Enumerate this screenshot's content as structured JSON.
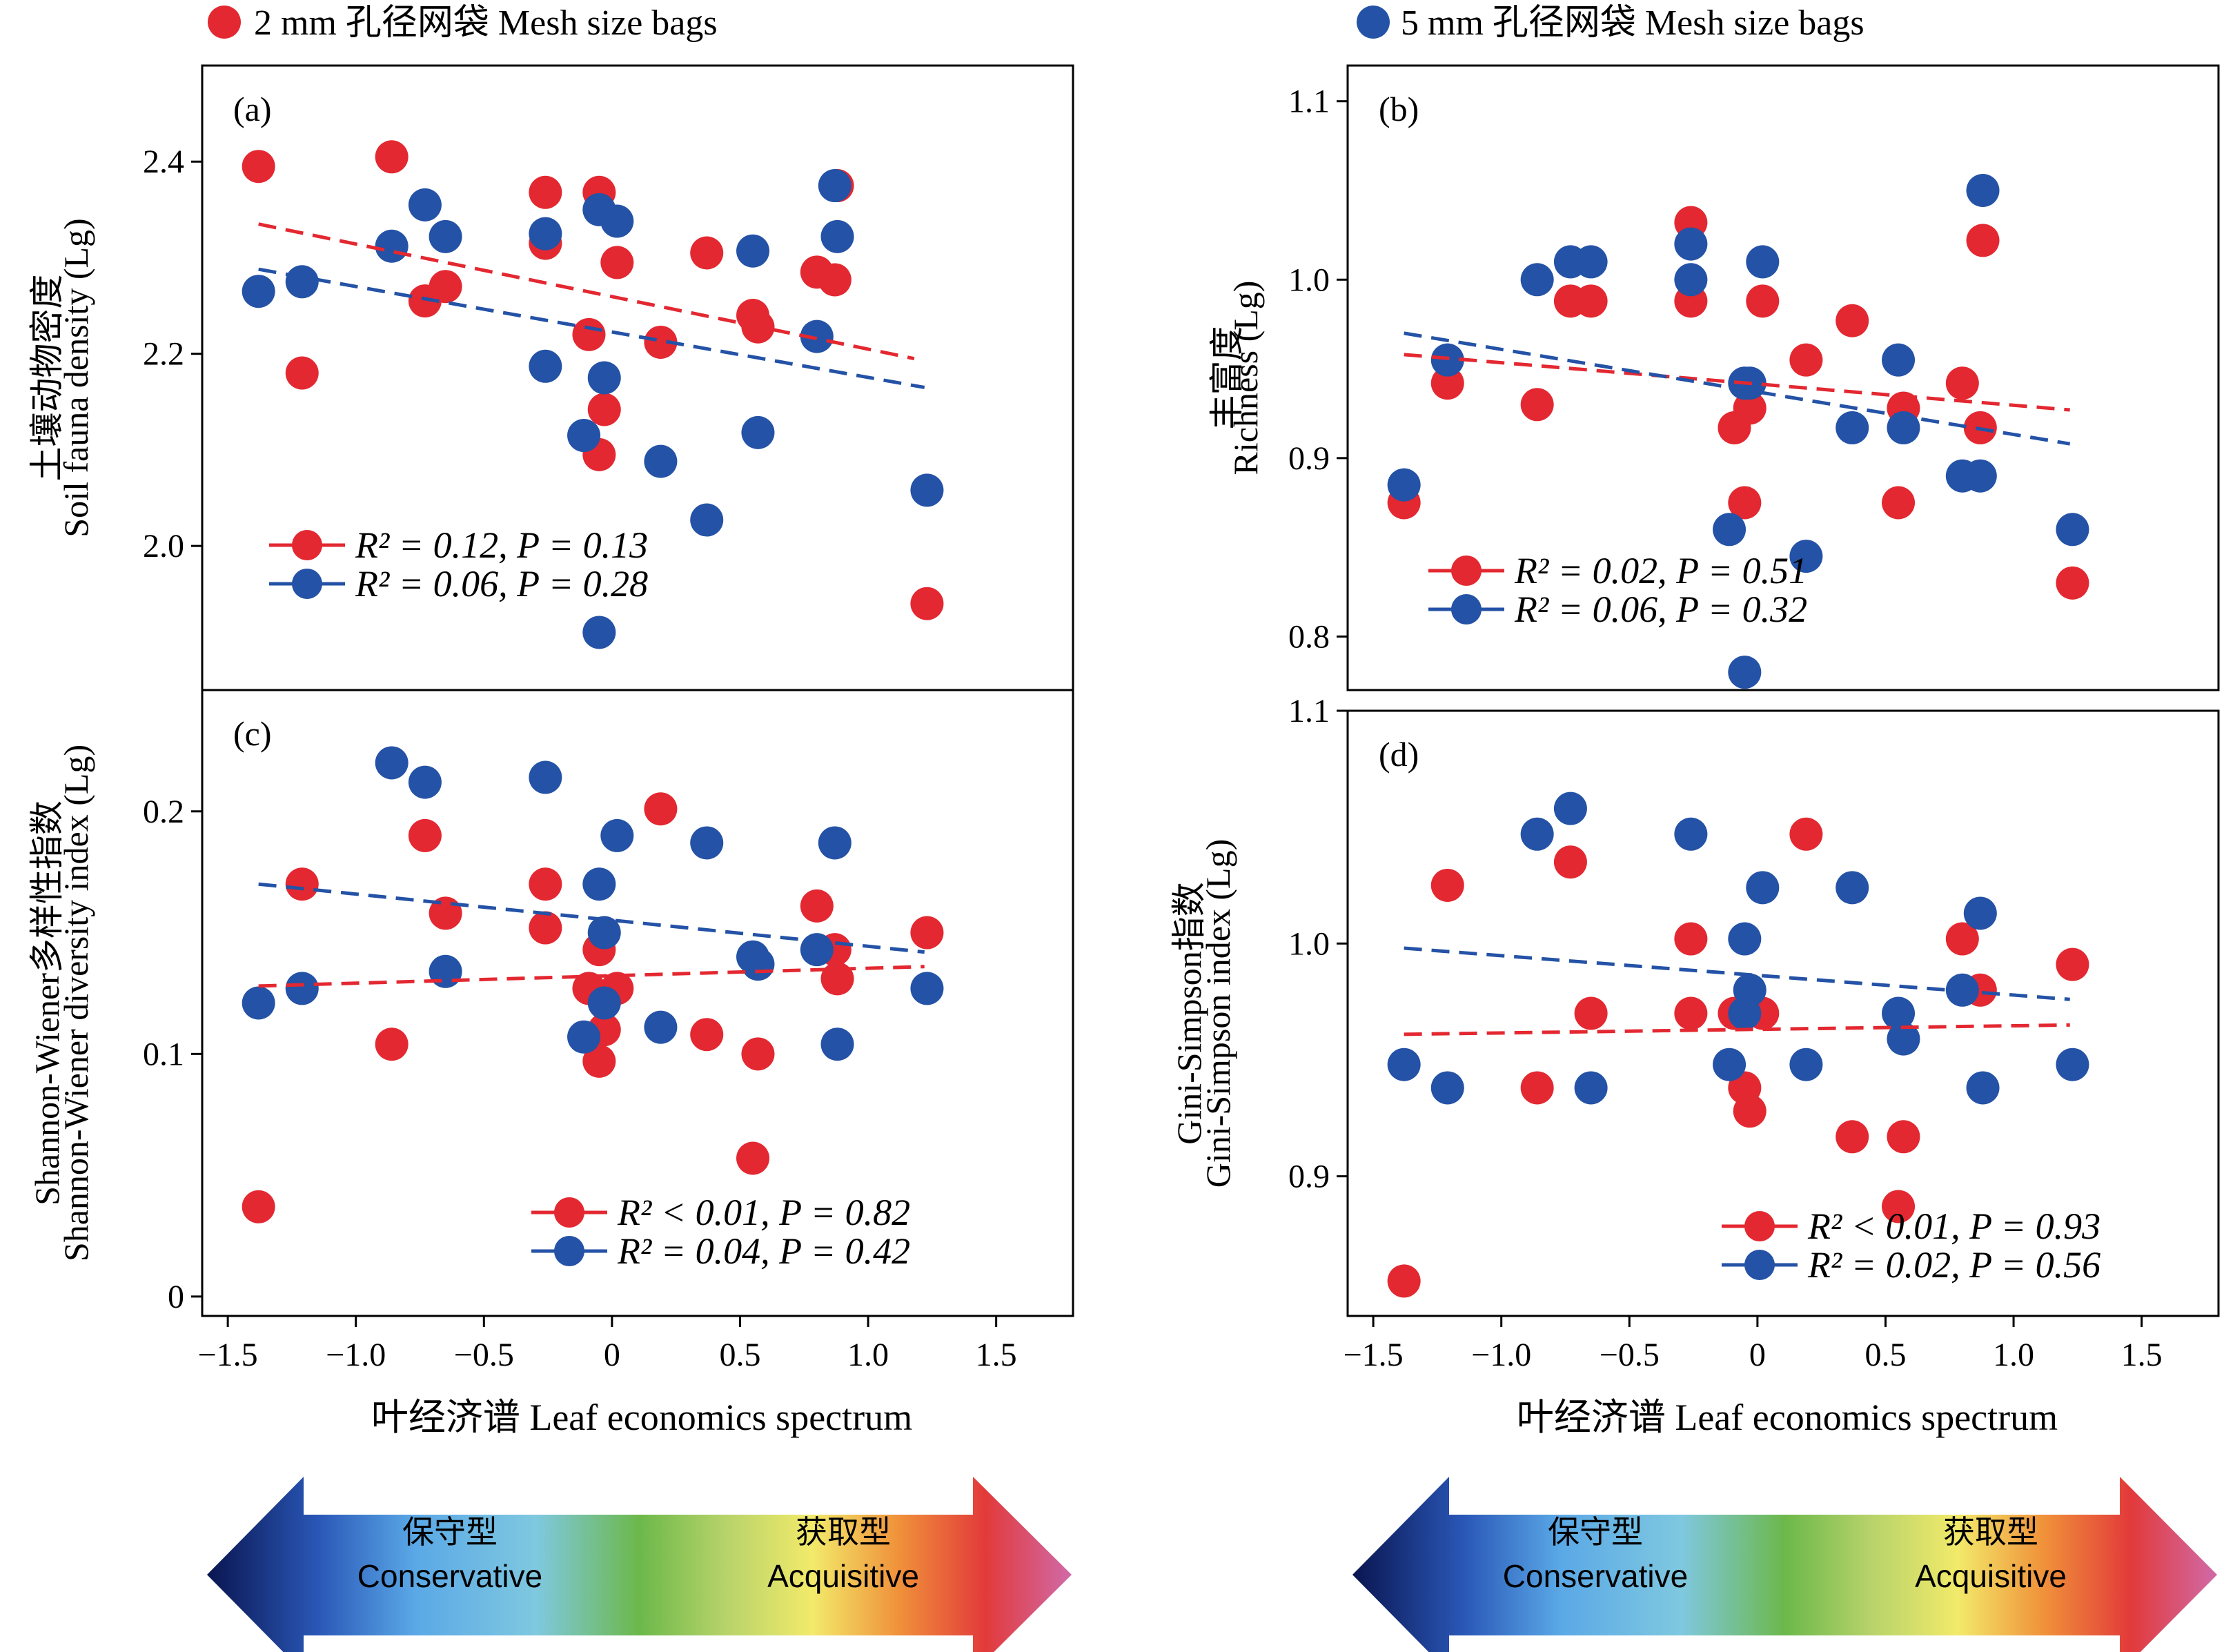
{
  "colors": {
    "red": "#E32831",
    "blue": "#2452A6",
    "axis": "#000000"
  },
  "legend_top": {
    "red_label": "2 mm 孔径网袋 Mesh size bags",
    "blue_label": "5 mm 孔径网袋 Mesh size bags"
  },
  "x_axis": {
    "label": "叶经济谱 Leaf economics spectrum",
    "ticks": [
      "−1.5",
      "−1.0",
      "−0.5",
      "0",
      "0.5",
      "1.0",
      "1.5"
    ]
  },
  "arrow": {
    "left_cn": "保守型",
    "left_en": "Conservative",
    "right_cn": "获取型",
    "right_en": "Acquisitive"
  },
  "chart_data": [
    {
      "id": "a",
      "panel_label": "(a)",
      "type": "scatter",
      "ylabel_cn": "土壤动物密度",
      "ylabel_en": "Soil fauna density (Lg)",
      "xlim": [
        -1.6,
        1.8
      ],
      "ylim": [
        1.85,
        2.5
      ],
      "yticks": [
        2.0,
        2.2,
        2.4
      ],
      "ytick_labels": [
        "2.0",
        "2.2",
        "2.4"
      ],
      "series": [
        {
          "color": "red",
          "legend": "R² = 0.12, P = 0.13",
          "fit": [
            [
              -1.38,
              2.335
            ],
            [
              1.18,
              2.195
            ]
          ],
          "points": [
            [
              -1.38,
              2.395
            ],
            [
              -1.21,
              2.18
            ],
            [
              -0.86,
              2.405
            ],
            [
              -0.73,
              2.255
            ],
            [
              -0.65,
              2.27
            ],
            [
              -0.26,
              2.368
            ],
            [
              -0.26,
              2.315
            ],
            [
              -0.09,
              2.22
            ],
            [
              -0.05,
              2.095
            ],
            [
              -0.05,
              2.368
            ],
            [
              -0.03,
              2.142
            ],
            [
              0.02,
              2.295
            ],
            [
              0.19,
              2.212
            ],
            [
              0.37,
              2.305
            ],
            [
              0.55,
              2.24
            ],
            [
              0.57,
              2.228
            ],
            [
              0.8,
              2.285
            ],
            [
              0.87,
              2.277
            ],
            [
              0.88,
              2.375
            ],
            [
              1.23,
              1.94
            ]
          ]
        },
        {
          "color": "blue",
          "legend": "R² = 0.06, P = 0.28",
          "fit": [
            [
              -1.38,
              2.288
            ],
            [
              1.22,
              2.165
            ]
          ],
          "points": [
            [
              -1.38,
              2.265
            ],
            [
              -1.21,
              2.275
            ],
            [
              -0.86,
              2.312
            ],
            [
              -0.73,
              2.355
            ],
            [
              -0.65,
              2.322
            ],
            [
              -0.26,
              2.325
            ],
            [
              -0.26,
              2.187
            ],
            [
              -0.11,
              2.115
            ],
            [
              -0.05,
              2.35
            ],
            [
              -0.03,
              2.175
            ],
            [
              0.02,
              2.338
            ],
            [
              0.19,
              2.088
            ],
            [
              0.37,
              2.027
            ],
            [
              0.55,
              2.307
            ],
            [
              0.57,
              2.118
            ],
            [
              0.8,
              2.218
            ],
            [
              0.87,
              2.375
            ],
            [
              0.88,
              2.322
            ],
            [
              1.23,
              2.058
            ],
            [
              -0.05,
              1.91
            ]
          ]
        }
      ]
    },
    {
      "id": "b",
      "panel_label": "(b)",
      "type": "scatter",
      "ylabel_cn": "丰富度",
      "ylabel_en": "Richness (Lg)",
      "xlim": [
        -1.6,
        1.8
      ],
      "ylim": [
        0.77,
        1.12
      ],
      "yticks": [
        0.8,
        0.9,
        1.0,
        1.1
      ],
      "ytick_labels": [
        "0.8",
        "0.9",
        "1.0",
        "1.1"
      ],
      "series": [
        {
          "color": "red",
          "legend": "R² = 0.02, P = 0.51",
          "fit": [
            [
              -1.38,
              0.958
            ],
            [
              1.22,
              0.927
            ]
          ],
          "points": [
            [
              -1.38,
              0.875
            ],
            [
              -1.21,
              0.942
            ],
            [
              -0.86,
              0.93
            ],
            [
              -0.73,
              0.988
            ],
            [
              -0.65,
              0.988
            ],
            [
              -0.26,
              1.032
            ],
            [
              -0.26,
              0.988
            ],
            [
              -0.09,
              0.917
            ],
            [
              -0.05,
              0.875
            ],
            [
              -0.03,
              0.928
            ],
            [
              0.02,
              0.988
            ],
            [
              0.19,
              0.955
            ],
            [
              0.37,
              0.977
            ],
            [
              0.55,
              0.875
            ],
            [
              0.57,
              0.928
            ],
            [
              0.8,
              0.942
            ],
            [
              0.87,
              0.917
            ],
            [
              0.88,
              1.022
            ],
            [
              1.23,
              0.83
            ]
          ]
        },
        {
          "color": "blue",
          "legend": "R² = 0.06, P = 0.32",
          "fit": [
            [
              -1.38,
              0.97
            ],
            [
              1.22,
              0.908
            ]
          ],
          "points": [
            [
              -1.38,
              0.885
            ],
            [
              -1.21,
              0.955
            ],
            [
              -0.86,
              1.0
            ],
            [
              -0.73,
              1.01
            ],
            [
              -0.65,
              1.01
            ],
            [
              -0.26,
              1.02
            ],
            [
              -0.26,
              1.0
            ],
            [
              -0.11,
              0.86
            ],
            [
              -0.05,
              0.942
            ],
            [
              -0.03,
              0.942
            ],
            [
              0.02,
              1.01
            ],
            [
              0.19,
              0.845
            ],
            [
              0.37,
              0.917
            ],
            [
              0.55,
              0.955
            ],
            [
              0.57,
              0.917
            ],
            [
              0.8,
              0.89
            ],
            [
              0.87,
              0.89
            ],
            [
              0.88,
              1.05
            ],
            [
              1.23,
              0.86
            ],
            [
              -0.05,
              0.78
            ]
          ]
        }
      ]
    },
    {
      "id": "c",
      "panel_label": "(c)",
      "type": "scatter",
      "ylabel_cn": "Shannon-Wiener多样性指数",
      "ylabel_en": "Shannon-Wiener diversity index (Lg)",
      "xlim": [
        -1.6,
        1.8
      ],
      "ylim": [
        -0.008,
        0.25
      ],
      "yticks": [
        0,
        0.1,
        0.2
      ],
      "ytick_labels": [
        "0",
        "0.1",
        "0.2"
      ],
      "series": [
        {
          "color": "red",
          "legend": "R² < 0.01, P = 0.82",
          "fit": [
            [
              -1.38,
              0.128
            ],
            [
              1.22,
              0.136
            ]
          ],
          "points": [
            [
              -1.38,
              0.037
            ],
            [
              -1.21,
              0.17
            ],
            [
              -0.86,
              0.104
            ],
            [
              -0.73,
              0.19
            ],
            [
              -0.65,
              0.158
            ],
            [
              -0.26,
              0.17
            ],
            [
              -0.26,
              0.152
            ],
            [
              -0.09,
              0.127
            ],
            [
              -0.05,
              0.143
            ],
            [
              -0.05,
              0.097
            ],
            [
              -0.03,
              0.11
            ],
            [
              0.02,
              0.127
            ],
            [
              0.19,
              0.201
            ],
            [
              0.37,
              0.108
            ],
            [
              0.55,
              0.057
            ],
            [
              0.57,
              0.1
            ],
            [
              0.8,
              0.161
            ],
            [
              0.87,
              0.143
            ],
            [
              0.88,
              0.131
            ],
            [
              1.23,
              0.15
            ]
          ]
        },
        {
          "color": "blue",
          "legend": "R² = 0.04, P = 0.42",
          "fit": [
            [
              -1.38,
              0.17
            ],
            [
              1.22,
              0.142
            ]
          ],
          "points": [
            [
              -1.38,
              0.121
            ],
            [
              -1.21,
              0.127
            ],
            [
              -0.86,
              0.22
            ],
            [
              -0.73,
              0.212
            ],
            [
              -0.65,
              0.134
            ],
            [
              -0.26,
              0.214
            ],
            [
              -0.11,
              0.107
            ],
            [
              -0.05,
              0.17
            ],
            [
              -0.03,
              0.15
            ],
            [
              -0.03,
              0.121
            ],
            [
              0.02,
              0.19
            ],
            [
              0.19,
              0.111
            ],
            [
              0.37,
              0.187
            ],
            [
              0.55,
              0.14
            ],
            [
              0.57,
              0.137
            ],
            [
              0.8,
              0.143
            ],
            [
              0.87,
              0.187
            ],
            [
              0.88,
              0.104
            ],
            [
              1.23,
              0.127
            ]
          ]
        }
      ]
    },
    {
      "id": "d",
      "panel_label": "(d)",
      "type": "scatter",
      "ylabel_cn": "Gini-Simpson指数",
      "ylabel_en": "Gini-Simpson index (Lg)",
      "xlim": [
        -1.6,
        1.8
      ],
      "ylim": [
        0.84,
        1.1
      ],
      "yticks": [
        0.9,
        1.0,
        1.1
      ],
      "ytick_labels": [
        "0.9",
        "1.0",
        "1.1"
      ],
      "series": [
        {
          "color": "red",
          "legend": "R² < 0.01, P = 0.93",
          "fit": [
            [
              -1.38,
              0.961
            ],
            [
              1.22,
              0.965
            ]
          ],
          "points": [
            [
              -1.38,
              0.855
            ],
            [
              -1.21,
              1.025
            ],
            [
              -0.86,
              0.938
            ],
            [
              -0.73,
              1.035
            ],
            [
              -0.65,
              0.97
            ],
            [
              -0.26,
              1.002
            ],
            [
              -0.26,
              0.97
            ],
            [
              -0.09,
              0.97
            ],
            [
              -0.05,
              0.938
            ],
            [
              -0.03,
              0.928
            ],
            [
              0.02,
              0.97
            ],
            [
              0.19,
              1.047
            ],
            [
              0.37,
              0.917
            ],
            [
              0.55,
              0.887
            ],
            [
              0.57,
              0.917
            ],
            [
              0.8,
              1.002
            ],
            [
              0.87,
              0.98
            ],
            [
              1.23,
              0.991
            ]
          ]
        },
        {
          "color": "blue",
          "legend": "R² = 0.02, P = 0.56",
          "fit": [
            [
              -1.38,
              0.998
            ],
            [
              1.22,
              0.976
            ]
          ],
          "points": [
            [
              -1.38,
              0.948
            ],
            [
              -1.21,
              0.938
            ],
            [
              -0.86,
              1.047
            ],
            [
              -0.73,
              1.058
            ],
            [
              -0.65,
              0.938
            ],
            [
              -0.26,
              1.047
            ],
            [
              -0.11,
              0.948
            ],
            [
              -0.05,
              1.002
            ],
            [
              -0.05,
              0.97
            ],
            [
              -0.03,
              0.98
            ],
            [
              0.02,
              1.024
            ],
            [
              0.19,
              0.948
            ],
            [
              0.37,
              1.024
            ],
            [
              0.55,
              0.97
            ],
            [
              0.57,
              0.959
            ],
            [
              0.8,
              0.98
            ],
            [
              0.87,
              1.013
            ],
            [
              0.88,
              0.938
            ],
            [
              1.23,
              0.948
            ]
          ]
        }
      ]
    }
  ]
}
